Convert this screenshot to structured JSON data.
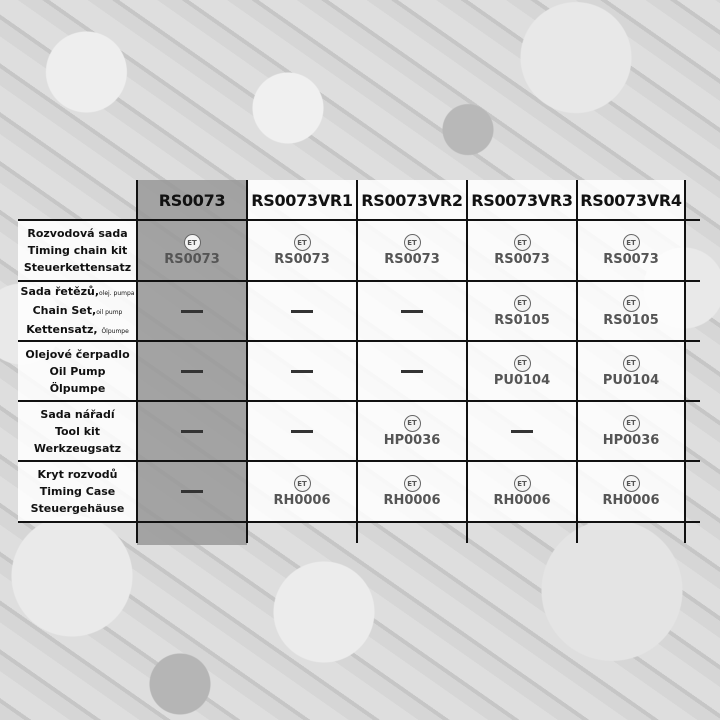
{
  "columns": [
    "RS0073",
    "RS0073VR1",
    "RS0073VR2",
    "RS0073VR3",
    "RS0073VR4"
  ],
  "logo_text": "ET",
  "rows": [
    {
      "label": [
        {
          "main": "Rozvodová sada",
          "sub": ""
        },
        {
          "main": "Timing chain kit",
          "sub": ""
        },
        {
          "main": "Steuerkettensatz",
          "sub": ""
        }
      ],
      "cells": [
        "RS0073",
        "RS0073",
        "RS0073",
        "RS0073",
        "RS0073"
      ]
    },
    {
      "label": [
        {
          "main": "Sada řetězů,",
          "sub": "olej. pumpa"
        },
        {
          "main": "Chain Set,",
          "sub": "oil pump"
        },
        {
          "main": "Kettensatz, ",
          "sub": "Ölpumpe"
        }
      ],
      "cells": [
        null,
        null,
        null,
        "RS0105",
        "RS0105"
      ]
    },
    {
      "label": [
        {
          "main": "Olejové čerpadlo",
          "sub": ""
        },
        {
          "main": "Oil Pump",
          "sub": ""
        },
        {
          "main": "Ölpumpe",
          "sub": ""
        }
      ],
      "cells": [
        null,
        null,
        null,
        "PU0104",
        "PU0104"
      ]
    },
    {
      "label": [
        {
          "main": "Sada nářadí",
          "sub": ""
        },
        {
          "main": "Tool kit",
          "sub": ""
        },
        {
          "main": "Werkzeugsatz",
          "sub": ""
        }
      ],
      "cells": [
        null,
        null,
        "HP0036",
        null,
        "HP0036"
      ]
    },
    {
      "label": [
        {
          "main": "Kryt rozvodů",
          "sub": ""
        },
        {
          "main": "Timing Case",
          "sub": ""
        },
        {
          "main": "Steuergehäuse",
          "sub": ""
        }
      ],
      "cells": [
        null,
        "RH0006",
        "RH0006",
        "RH0006",
        "RH0006"
      ]
    }
  ],
  "colors": {
    "highlight_column": "#969696",
    "cell": "#ffffff",
    "grid": "#111111",
    "part_text": "#555555"
  }
}
